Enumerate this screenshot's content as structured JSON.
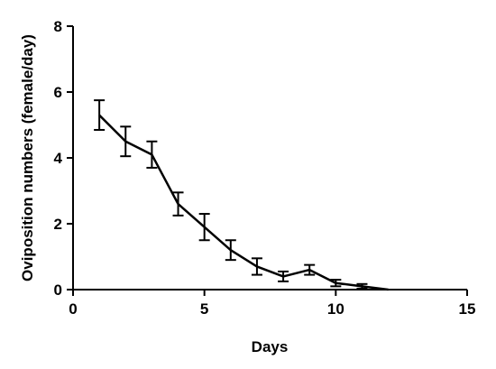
{
  "chart_data": {
    "type": "line",
    "title": "",
    "xlabel": "Days",
    "ylabel": "Oviposition numbers (female/day)",
    "xlim": [
      0,
      15
    ],
    "ylim": [
      0,
      8
    ],
    "xticks": [
      0,
      5,
      10,
      15
    ],
    "yticks": [
      0,
      2,
      4,
      6,
      8
    ],
    "grid": false,
    "error_bars": true,
    "series": [
      {
        "x": [
          1,
          2,
          3,
          4,
          5,
          6,
          7,
          8,
          9,
          10,
          11,
          12
        ],
        "values": [
          5.3,
          4.5,
          4.1,
          2.6,
          1.9,
          1.2,
          0.7,
          0.4,
          0.6,
          0.2,
          0.1,
          0.0
        ],
        "errors": [
          0.45,
          0.45,
          0.4,
          0.35,
          0.4,
          0.3,
          0.25,
          0.15,
          0.15,
          0.1,
          0.07,
          0.0
        ]
      }
    ]
  }
}
